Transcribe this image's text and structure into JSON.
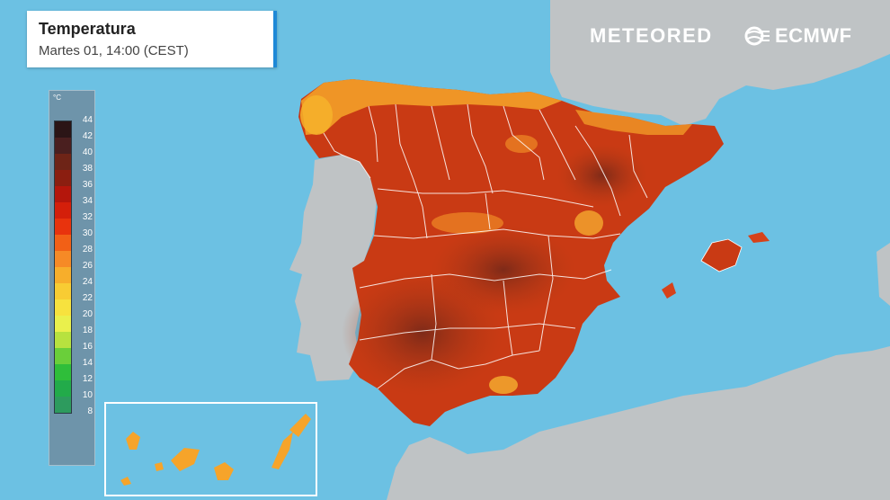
{
  "header": {
    "title": "Temperatura",
    "subtitle": "Martes 01, 14:00 (CEST)"
  },
  "logos": {
    "meteored": "METEORED",
    "ecmwf": "ECMWF"
  },
  "legend": {
    "unit": "°C",
    "labels": [
      "44",
      "42",
      "40",
      "38",
      "36",
      "34",
      "32",
      "30",
      "28",
      "26",
      "24",
      "22",
      "20",
      "18",
      "16",
      "14",
      "12",
      "10",
      "8"
    ],
    "colors": [
      "#2b1516",
      "#4a1f1f",
      "#6e2417",
      "#8b1e10",
      "#b4160c",
      "#d41f0a",
      "#e8330d",
      "#f26016",
      "#f68a26",
      "#f7ae2b",
      "#f8cc33",
      "#f7e23e",
      "#eaf04c",
      "#b7e23f",
      "#6acf3a",
      "#2fbe3a",
      "#22ab4a",
      "#2d9b5e",
      "#2f8d6c"
    ]
  },
  "colors": {
    "sea": "#6cc1e3",
    "land": "#bfc3c5",
    "hot": "#c4300f",
    "very_hot": "#8f2b17",
    "warm": "#f6a42a"
  }
}
